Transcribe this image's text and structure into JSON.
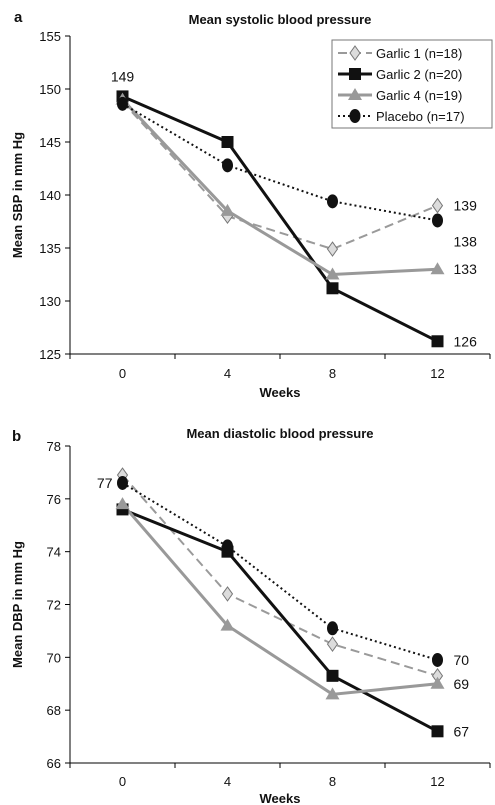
{
  "chart_data": [
    {
      "panel_label": "a",
      "type": "line",
      "title": "Mean systolic blood pressure",
      "xlabel": "Weeks",
      "ylabel": "Mean SBP in mm Hg",
      "x": [
        0,
        4,
        8,
        12
      ],
      "x_tick_labels": [
        "0",
        "4",
        "8",
        "12"
      ],
      "xlim": [
        -2,
        14
      ],
      "ylim": [
        125,
        155
      ],
      "y_ticks": [
        125,
        130,
        135,
        140,
        145,
        150,
        155
      ],
      "grid": false,
      "legend_position": "top-right",
      "series": [
        {
          "name": "Garlic 1 (n=18)",
          "values": [
            148.8,
            138.0,
            134.9,
            139.0
          ],
          "color": "#9a9a9a",
          "line_style": "dashed",
          "marker": "diamond"
        },
        {
          "name": "Garlic 2 (n=20)",
          "values": [
            149.3,
            145.0,
            131.2,
            126.2
          ],
          "color": "#111111",
          "line_style": "solid",
          "marker": "square"
        },
        {
          "name": "Garlic 4 (n=19)",
          "values": [
            149.0,
            138.5,
            132.5,
            133.0
          ],
          "color": "#999999",
          "line_style": "solid",
          "marker": "triangle"
        },
        {
          "name": "Placebo (n=17)",
          "values": [
            148.6,
            142.8,
            139.4,
            137.6
          ],
          "color": "#111111",
          "line_style": "dotted",
          "marker": "circle"
        }
      ],
      "annotations": [
        {
          "text": "149",
          "x": 0,
          "y": 149,
          "placement": "above"
        },
        {
          "text": "139",
          "x": 12,
          "y": 139,
          "placement": "right"
        },
        {
          "text": "138",
          "x": 12,
          "y": 137.6,
          "placement": "right-below"
        },
        {
          "text": "133",
          "x": 12,
          "y": 133,
          "placement": "right"
        },
        {
          "text": "126",
          "x": 12,
          "y": 126.2,
          "placement": "right"
        }
      ]
    },
    {
      "panel_label": "b",
      "type": "line",
      "title": "Mean diastolic blood pressure",
      "xlabel": "Weeks",
      "ylabel": "Mean DBP in mm Hg",
      "x": [
        0,
        4,
        8,
        12
      ],
      "x_tick_labels": [
        "0",
        "4",
        "8",
        "12"
      ],
      "xlim": [
        -2,
        14
      ],
      "ylim": [
        66,
        78
      ],
      "y_ticks": [
        66,
        68,
        70,
        72,
        74,
        76,
        78
      ],
      "grid": false,
      "legend_position": "none",
      "series": [
        {
          "name": "Garlic 1 (n=18)",
          "values": [
            76.9,
            72.4,
            70.5,
            69.3
          ],
          "color": "#9a9a9a",
          "line_style": "dashed",
          "marker": "diamond"
        },
        {
          "name": "Garlic 2 (n=20)",
          "values": [
            75.6,
            74.0,
            69.3,
            67.2
          ],
          "color": "#111111",
          "line_style": "solid",
          "marker": "square"
        },
        {
          "name": "Garlic 4 (n=19)",
          "values": [
            75.8,
            71.2,
            68.6,
            69.0
          ],
          "color": "#999999",
          "line_style": "solid",
          "marker": "triangle"
        },
        {
          "name": "Placebo (n=17)",
          "values": [
            76.6,
            74.2,
            71.1,
            69.9
          ],
          "color": "#111111",
          "line_style": "dotted",
          "marker": "circle"
        }
      ],
      "annotations": [
        {
          "text": "77",
          "x": 0,
          "y": 76.6,
          "placement": "left"
        },
        {
          "text": "70",
          "x": 12,
          "y": 69.9,
          "placement": "right"
        },
        {
          "text": "69",
          "x": 12,
          "y": 69.0,
          "placement": "right"
        },
        {
          "text": "67",
          "x": 12,
          "y": 67.2,
          "placement": "right"
        }
      ]
    }
  ]
}
